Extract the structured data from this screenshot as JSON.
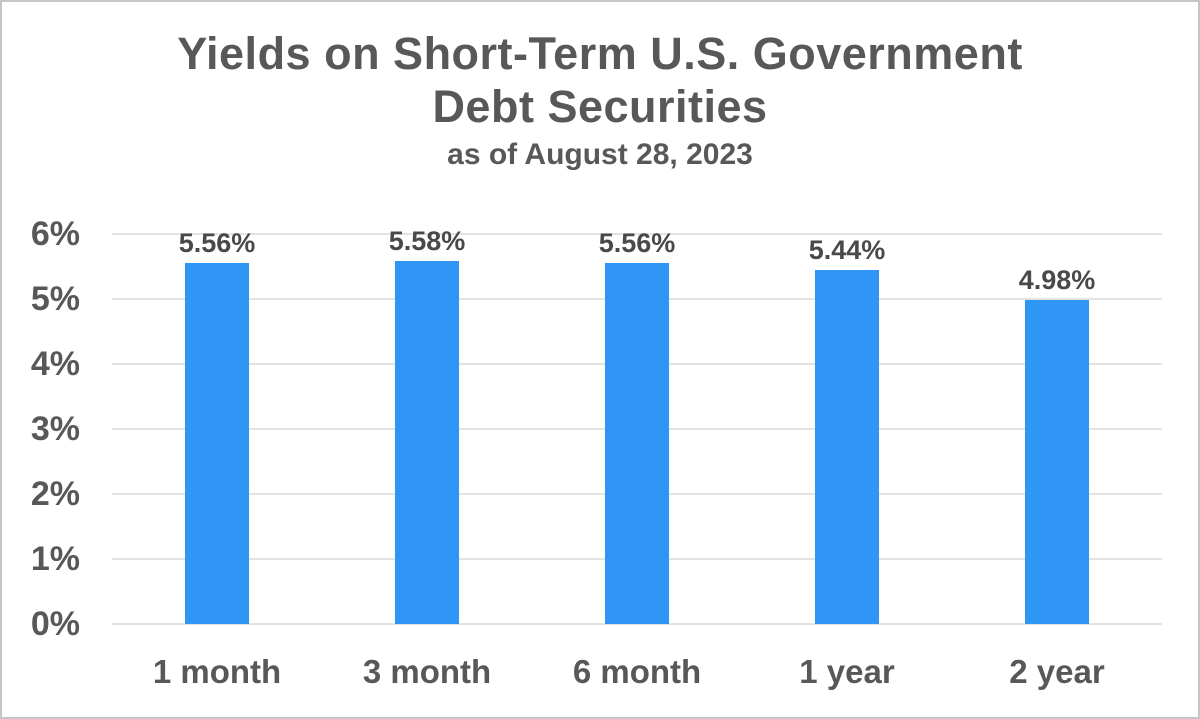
{
  "page": {
    "background": "#ffffff",
    "border_color": "#c6c6c6"
  },
  "header": {
    "title_lines": [
      "Yields on Short-Term U.S. Government",
      "Debt Securities"
    ],
    "subtitle": "as of August 28, 2023"
  },
  "chart_data": {
    "type": "bar",
    "title": "Yields on Short-Term U.S. Government Debt Securities",
    "subtitle": "as of August 28, 2023",
    "categories": [
      "1 month",
      "3 month",
      "6 month",
      "1 year",
      "2 year"
    ],
    "values": [
      5.56,
      5.58,
      5.56,
      5.44,
      4.98
    ],
    "value_labels": [
      "5.56%",
      "5.58%",
      "5.56%",
      "5.44%",
      "4.98%"
    ],
    "xlabel": "",
    "ylabel": "",
    "ylim": [
      0,
      6
    ],
    "y_ticks": [
      {
        "value": 6,
        "label": "6%"
      },
      {
        "value": 5,
        "label": "5%"
      },
      {
        "value": 4,
        "label": "4%"
      },
      {
        "value": 3,
        "label": "3%"
      },
      {
        "value": 2,
        "label": "2%"
      },
      {
        "value": 1,
        "label": "1%"
      },
      {
        "value": 0,
        "label": "0%"
      }
    ],
    "grid": "horizontal",
    "legend": "none",
    "bar_color": "#2F96F5",
    "grid_color": "#e3e3e3",
    "text_color": "#58585a",
    "value_label_color": "#49494b"
  }
}
